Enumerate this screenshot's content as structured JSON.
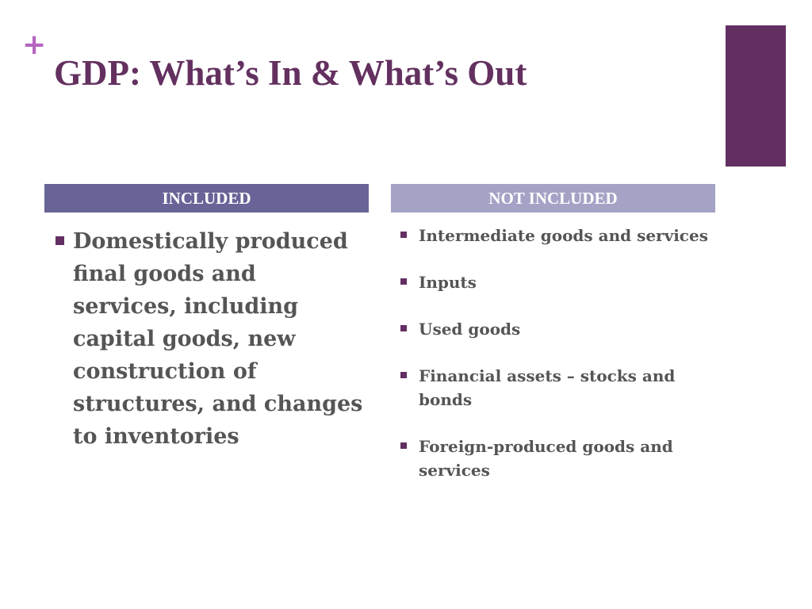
{
  "header": {
    "plus": "+",
    "title": "GDP: What’s In & What’s Out"
  },
  "columns": [
    {
      "heading": "INCLUDED",
      "items": [
        "Domestically produced final goods and services, including capital goods, new construction of structures, and changes to inventories"
      ]
    },
    {
      "heading": "NOT INCLUDED",
      "items": [
        "Intermediate goods and services",
        "Inputs",
        "Used goods",
        "Financial assets – stocks and bonds",
        "Foreign-produced goods and services"
      ]
    }
  ]
}
